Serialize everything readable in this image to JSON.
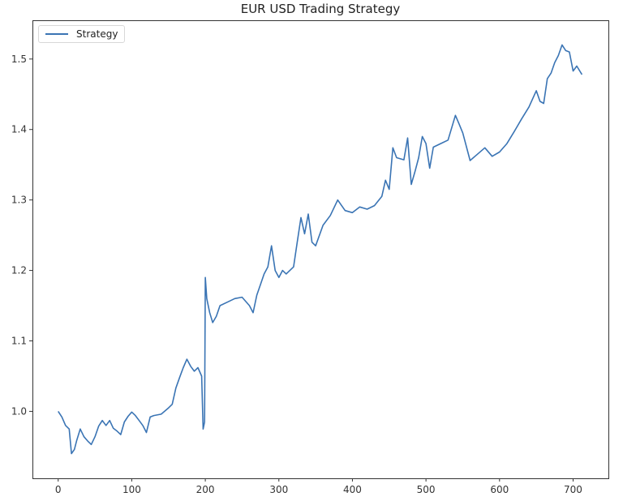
{
  "chart_data": {
    "type": "line",
    "title": "EUR USD Trading Strategy",
    "xlabel": "",
    "ylabel": "",
    "xlim": [
      -35,
      748
    ],
    "ylim": [
      0.905,
      1.555
    ],
    "xticks": [
      0,
      100,
      200,
      300,
      400,
      500,
      600,
      700
    ],
    "yticks": [
      1.0,
      1.1,
      1.2,
      1.3,
      1.4,
      1.5
    ],
    "xtick_labels": [
      "0",
      "100",
      "200",
      "300",
      "400",
      "500",
      "600",
      "700"
    ],
    "ytick_labels": [
      "1.0",
      "1.1",
      "1.2",
      "1.3",
      "1.4",
      "1.5"
    ],
    "grid": false,
    "legend": {
      "position": "upper left",
      "entries": [
        "Strategy"
      ]
    },
    "series": [
      {
        "name": "Strategy",
        "color": "#3a74b4",
        "x": [
          0,
          5,
          10,
          15,
          18,
          22,
          25,
          30,
          35,
          40,
          45,
          50,
          55,
          60,
          65,
          70,
          75,
          80,
          85,
          90,
          95,
          100,
          105,
          110,
          115,
          120,
          125,
          130,
          140,
          150,
          155,
          160,
          165,
          170,
          175,
          180,
          185,
          190,
          195,
          197,
          199,
          200,
          202,
          206,
          210,
          215,
          220,
          230,
          240,
          250,
          260,
          265,
          270,
          275,
          280,
          285,
          290,
          295,
          300,
          305,
          310,
          320,
          325,
          330,
          335,
          340,
          345,
          350,
          360,
          370,
          380,
          390,
          400,
          410,
          420,
          430,
          440,
          445,
          450,
          455,
          460,
          470,
          475,
          480,
          485,
          490,
          495,
          500,
          505,
          510,
          520,
          530,
          540,
          545,
          550,
          560,
          570,
          580,
          590,
          600,
          610,
          620,
          630,
          640,
          650,
          655,
          660,
          665,
          670,
          675,
          680,
          685,
          690,
          695,
          700,
          705,
          712
        ],
        "values": [
          1.0,
          0.992,
          0.98,
          0.975,
          0.94,
          0.946,
          0.958,
          0.975,
          0.964,
          0.958,
          0.953,
          0.964,
          0.979,
          0.987,
          0.98,
          0.987,
          0.976,
          0.972,
          0.967,
          0.985,
          0.993,
          0.999,
          0.994,
          0.987,
          0.98,
          0.97,
          0.992,
          0.994,
          0.996,
          1.005,
          1.01,
          1.033,
          1.048,
          1.062,
          1.074,
          1.064,
          1.057,
          1.062,
          1.05,
          0.975,
          0.985,
          1.19,
          1.16,
          1.14,
          1.126,
          1.135,
          1.15,
          1.155,
          1.16,
          1.162,
          1.15,
          1.14,
          1.165,
          1.18,
          1.195,
          1.205,
          1.235,
          1.2,
          1.19,
          1.2,
          1.195,
          1.205,
          1.24,
          1.275,
          1.252,
          1.28,
          1.24,
          1.235,
          1.264,
          1.278,
          1.3,
          1.285,
          1.282,
          1.29,
          1.287,
          1.292,
          1.305,
          1.328,
          1.315,
          1.374,
          1.36,
          1.357,
          1.388,
          1.322,
          1.34,
          1.36,
          1.39,
          1.38,
          1.345,
          1.375,
          1.38,
          1.385,
          1.42,
          1.408,
          1.395,
          1.356,
          1.365,
          1.374,
          1.362,
          1.368,
          1.38,
          1.397,
          1.415,
          1.432,
          1.455,
          1.44,
          1.437,
          1.472,
          1.48,
          1.495,
          1.505,
          1.52,
          1.512,
          1.51,
          1.483,
          1.49,
          1.478
        ]
      }
    ]
  }
}
